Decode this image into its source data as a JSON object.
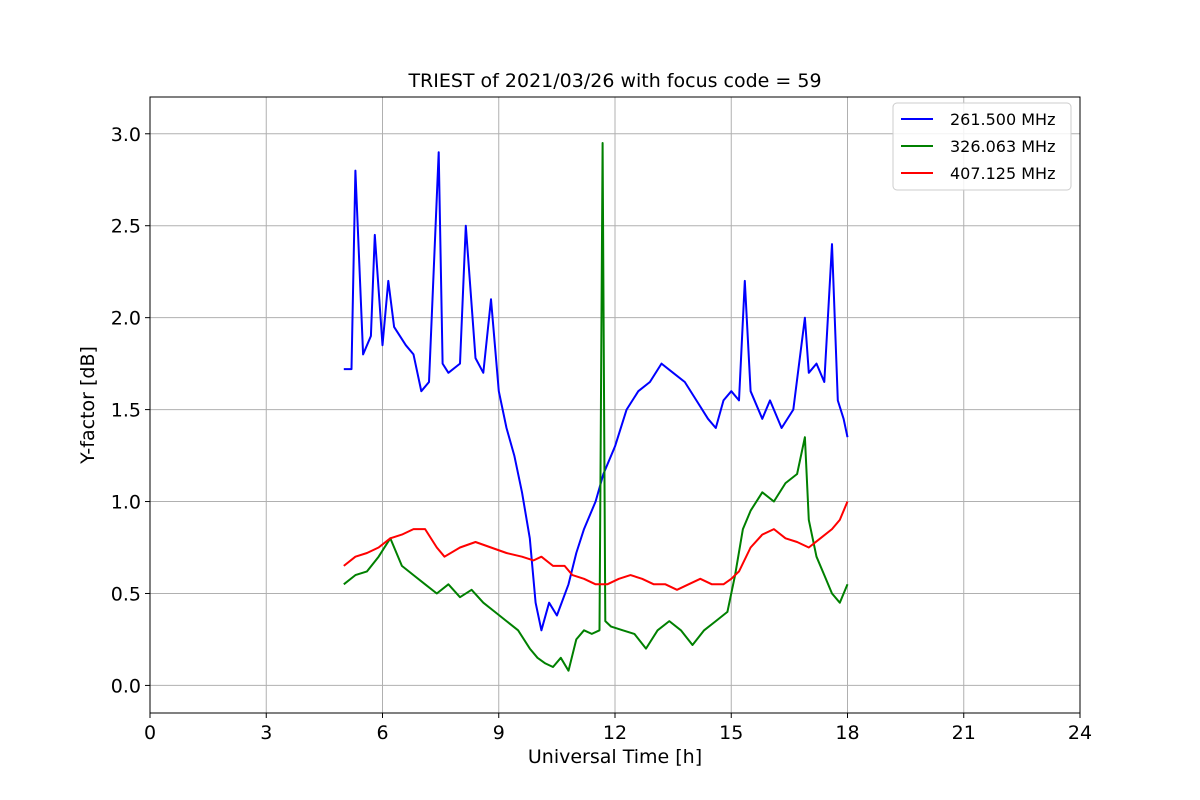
{
  "chart_data": {
    "type": "line",
    "title": "TRIEST of 2021/03/26 with focus code = 59",
    "xlabel": "Universal Time [h]",
    "ylabel": "Y-factor [dB]",
    "xlim": [
      0,
      24
    ],
    "ylim": [
      -0.15,
      3.2
    ],
    "xticks": [
      0,
      3,
      6,
      9,
      12,
      15,
      18,
      21,
      24
    ],
    "yticks": [
      0.0,
      0.5,
      1.0,
      1.5,
      2.0,
      2.5,
      3.0
    ],
    "ytick_labels": [
      "0.0",
      "0.5",
      "1.0",
      "1.5",
      "2.0",
      "2.5",
      "3.0"
    ],
    "grid": true,
    "legend_position": "top-right",
    "series": [
      {
        "name": "261.500 MHz",
        "color": "#0000ff",
        "x": [
          5.0,
          5.2,
          5.3,
          5.5,
          5.7,
          5.8,
          6.0,
          6.15,
          6.3,
          6.6,
          6.8,
          7.0,
          7.2,
          7.45,
          7.55,
          7.7,
          8.0,
          8.15,
          8.4,
          8.6,
          8.8,
          9.0,
          9.2,
          9.4,
          9.6,
          9.8,
          9.95,
          10.1,
          10.3,
          10.5,
          10.8,
          11.0,
          11.2,
          11.5,
          11.7,
          12.0,
          12.3,
          12.6,
          12.9,
          13.2,
          13.5,
          13.8,
          14.1,
          14.4,
          14.6,
          14.8,
          15.0,
          15.2,
          15.35,
          15.5,
          15.8,
          16.0,
          16.3,
          16.6,
          16.9,
          17.0,
          17.2,
          17.4,
          17.6,
          17.75,
          17.9,
          18.0
        ],
        "y": [
          1.72,
          1.72,
          2.8,
          1.8,
          1.9,
          2.45,
          1.85,
          2.2,
          1.95,
          1.85,
          1.8,
          1.6,
          1.65,
          2.9,
          1.75,
          1.7,
          1.75,
          2.5,
          1.78,
          1.7,
          2.1,
          1.6,
          1.4,
          1.25,
          1.05,
          0.8,
          0.45,
          0.3,
          0.45,
          0.38,
          0.55,
          0.72,
          0.85,
          1.0,
          1.15,
          1.3,
          1.5,
          1.6,
          1.65,
          1.75,
          1.7,
          1.65,
          1.55,
          1.45,
          1.4,
          1.55,
          1.6,
          1.55,
          2.2,
          1.6,
          1.45,
          1.55,
          1.4,
          1.5,
          2.0,
          1.7,
          1.75,
          1.65,
          2.4,
          1.55,
          1.45,
          1.35
        ]
      },
      {
        "name": "326.063 MHz",
        "color": "#008000",
        "x": [
          5.0,
          5.3,
          5.6,
          5.9,
          6.2,
          6.5,
          6.8,
          7.1,
          7.4,
          7.7,
          8.0,
          8.3,
          8.6,
          8.9,
          9.2,
          9.5,
          9.8,
          10.0,
          10.2,
          10.4,
          10.6,
          10.8,
          11.0,
          11.2,
          11.4,
          11.6,
          11.68,
          11.75,
          11.9,
          12.2,
          12.5,
          12.8,
          13.1,
          13.4,
          13.7,
          14.0,
          14.3,
          14.6,
          14.9,
          15.1,
          15.3,
          15.5,
          15.8,
          16.1,
          16.4,
          16.7,
          16.9,
          17.0,
          17.2,
          17.4,
          17.6,
          17.8,
          18.0
        ],
        "y": [
          0.55,
          0.6,
          0.62,
          0.7,
          0.8,
          0.65,
          0.6,
          0.55,
          0.5,
          0.55,
          0.48,
          0.52,
          0.45,
          0.4,
          0.35,
          0.3,
          0.2,
          0.15,
          0.12,
          0.1,
          0.15,
          0.08,
          0.25,
          0.3,
          0.28,
          0.3,
          2.95,
          0.35,
          0.32,
          0.3,
          0.28,
          0.2,
          0.3,
          0.35,
          0.3,
          0.22,
          0.3,
          0.35,
          0.4,
          0.6,
          0.85,
          0.95,
          1.05,
          1.0,
          1.1,
          1.15,
          1.35,
          0.9,
          0.7,
          0.6,
          0.5,
          0.45,
          0.55
        ]
      },
      {
        "name": "407.125 MHz",
        "color": "#ff0000",
        "x": [
          5.0,
          5.3,
          5.6,
          5.9,
          6.2,
          6.5,
          6.8,
          7.1,
          7.4,
          7.6,
          8.0,
          8.4,
          8.8,
          9.2,
          9.6,
          9.9,
          10.1,
          10.4,
          10.7,
          10.9,
          11.2,
          11.5,
          11.8,
          12.1,
          12.4,
          12.7,
          13.0,
          13.3,
          13.6,
          13.9,
          14.2,
          14.5,
          14.8,
          15.0,
          15.2,
          15.5,
          15.8,
          16.1,
          16.4,
          16.7,
          17.0,
          17.3,
          17.6,
          17.8,
          18.0
        ],
        "y": [
          0.65,
          0.7,
          0.72,
          0.75,
          0.8,
          0.82,
          0.85,
          0.85,
          0.75,
          0.7,
          0.75,
          0.78,
          0.75,
          0.72,
          0.7,
          0.68,
          0.7,
          0.65,
          0.65,
          0.6,
          0.58,
          0.55,
          0.55,
          0.58,
          0.6,
          0.58,
          0.55,
          0.55,
          0.52,
          0.55,
          0.58,
          0.55,
          0.55,
          0.58,
          0.62,
          0.75,
          0.82,
          0.85,
          0.8,
          0.78,
          0.75,
          0.8,
          0.85,
          0.9,
          1.0
        ]
      }
    ]
  }
}
